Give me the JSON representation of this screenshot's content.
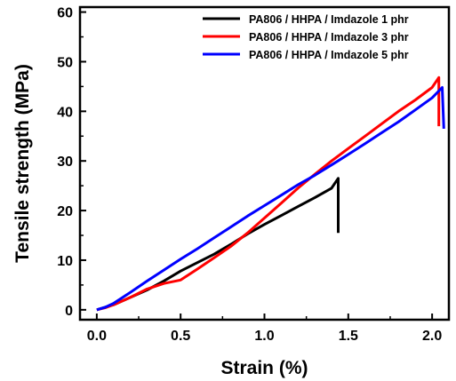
{
  "chart_data": {
    "type": "line",
    "title": "",
    "xlabel": "Strain (%)",
    "ylabel": "Tensile strength (MPa)",
    "xlim": [
      -0.1,
      2.1
    ],
    "ylim": [
      -2,
      61
    ],
    "xticks": [
      0.0,
      0.5,
      1.0,
      1.5,
      2.0
    ],
    "xtick_labels": [
      "0.0",
      "0.5",
      "1.0",
      "1.5",
      "2.0"
    ],
    "yticks": [
      0,
      10,
      20,
      30,
      40,
      50,
      60
    ],
    "ytick_labels": [
      "0",
      "10",
      "20",
      "30",
      "40",
      "50",
      "60"
    ],
    "grid": false,
    "legend_position": "top-right",
    "series": [
      {
        "name": "PA806 / HHPA / Imdazole 1 phr",
        "color": "#000000",
        "x": [
          0.0,
          0.05,
          0.1,
          0.2,
          0.3,
          0.4,
          0.5,
          0.6,
          0.7,
          0.8,
          0.9,
          1.0,
          1.1,
          1.2,
          1.3,
          1.4,
          1.44,
          1.44
        ],
        "y": [
          0.0,
          0.5,
          1.0,
          2.5,
          4.0,
          5.8,
          7.8,
          9.5,
          11.2,
          13.2,
          15.3,
          17.2,
          19.0,
          20.8,
          22.6,
          24.5,
          26.5,
          15.5
        ]
      },
      {
        "name": "PA806 / HHPA / Imdazole 3 phr",
        "color": "#ff0000",
        "x": [
          0.0,
          0.05,
          0.1,
          0.2,
          0.3,
          0.4,
          0.5,
          0.6,
          0.7,
          0.8,
          0.9,
          1.0,
          1.1,
          1.2,
          1.3,
          1.4,
          1.5,
          1.6,
          1.7,
          1.8,
          1.9,
          2.0,
          2.04,
          2.04
        ],
        "y": [
          0.0,
          0.4,
          1.0,
          2.5,
          4.2,
          5.3,
          6.0,
          8.2,
          10.5,
          12.8,
          15.5,
          18.5,
          21.5,
          24.5,
          27.3,
          30.0,
          32.5,
          35.0,
          37.5,
          40.0,
          42.3,
          44.8,
          46.8,
          37.0
        ]
      },
      {
        "name": "PA806 / HHPA / Imdazole 5 phr",
        "color": "#0000ff",
        "x": [
          0.0,
          0.05,
          0.1,
          0.2,
          0.3,
          0.4,
          0.5,
          0.6,
          0.7,
          0.8,
          0.9,
          1.0,
          1.1,
          1.2,
          1.3,
          1.4,
          1.5,
          1.6,
          1.7,
          1.8,
          1.9,
          2.0,
          2.06,
          2.07
        ],
        "y": [
          0.0,
          0.5,
          1.3,
          3.5,
          5.8,
          8.0,
          10.2,
          12.3,
          14.5,
          16.7,
          18.9,
          21.0,
          23.1,
          25.2,
          27.1,
          29.2,
          31.3,
          33.5,
          35.7,
          37.9,
          40.3,
          42.7,
          44.8,
          36.5
        ]
      }
    ]
  }
}
